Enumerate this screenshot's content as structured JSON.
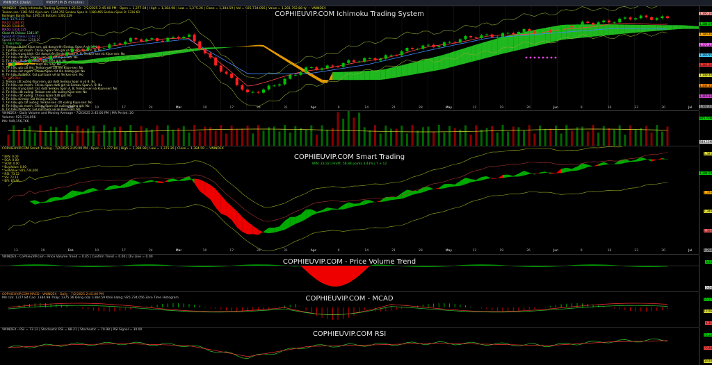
{
  "window": {
    "tabs": [
      "VNINDEX (Daily)",
      "VN30F1M (5 minutes)"
    ]
  },
  "panes": {
    "ichimoku": {
      "header": "VNINDEX - Daily Ichimoku Trading System 4.25.53 - 7/2/2025 2:45:00 PM - Open = 1,377.84 | High = 1,384.98 | Low = 1,375.26 | Close = 1,384.59 | Vol = 925,734,056 | Value = 1,281,762.88 tỷ — VNINDEX",
      "title": "COPHIEUVIP.COM Ichimoku Trading System",
      "legend": [
        "Tenkan-sen: 1361.565  Kijun-sen: 1344.355  Senkou Span A: 1380.465  Senkou Span B: 1316.60",
        "Bollinger Bands Top: 1395.16  Bottom: 1302.229",
        "MA5: 1375.122",
        "MA10: 1366.95",
        "MA20: 1348.40",
        "MA50: 1316.125",
        "Close At Chikou: 1341.97",
        "SpanA At Chikou: 1193.73",
        "SpanB At Chikou: 1258.20",
        "Tín hiệu Mua:",
        "1. Tenkan cắt lên Kijun-sen, giá đang trên Senkou Span A và B: No",
        "2. Tín hiệu cực mạnh: Chikou Span trên giá và Senkou Span A, B: No",
        "3. Tín hiệu trung bình: Giá đang trên Senkou Span A, B, Tenkan-sen và Kijun-sen: No",
        "4. Tín hiệu cắt lên: Tenkan-sen cắt lên Kijun-sen: No",
        "5. Tín hiệu cắt lên: Chikou Span trên giá: No",
        "6. Tín hiệu từ mây: Giá vượt lên mây: No",
        "7. Tín hiệu giá cắt lên: Tenkan-sen cắt lên Kijun-sen: No",
        "8. Tín hiệu sức mạnh: Chikou Span cắt lên đường giá: No",
        "9. Tín hiệu Pullback: Giá pull back về lại Tenkan-sen: No",
        "Tín hiệu Bán:",
        "1. Tenkan cắt xuống Kijun-sen, giá dưới Senkou Span A và B: No",
        "2. Tín hiệu cực mạnh: Chikou Span dưới giá và Senkou Span A, B: No",
        "3. Tín hiệu trung bình: Giá dưới Senkou Span A, B, Tenkan-sen và Kijun-sen: No",
        "4. Tín hiệu cắt xuống: Tenkan-sen cắt xuống Kijun-sen: No",
        "5. Tín hiệu cắt xuống: Chikou Span dưới giá: No",
        "6. Tín hiệu từ mây: Giá thủng mây: No",
        "7. Tín hiệu giá cắt xuống: Tenkan-sen cắt xuống Kijun-sen: No",
        "8. Tín hiệu sức mạnh: Chikou Span cắt xuống đường giá: No",
        "9. Tín hiệu Pullback: Giá pull back về lại Kijun-sen: No"
      ],
      "axis_ticks": [
        "1,395.16",
        "1,384.59",
        "1,380.46",
        "1,375.12",
        "1,366.95",
        "1,361.56",
        "1,348.40",
        "1,344.35",
        "1,316.12",
        "1,302.22"
      ]
    },
    "volume": {
      "header": "VNINDEX - Daily Volume and Moving Average - 7/2/2025 2:45:00 PM | MA Period: 20",
      "sub1": "Volume: 925,734,056",
      "sub2": "MA: 949,156,766",
      "axis_ticks": [
        "925.73M",
        "949.15M"
      ]
    },
    "smart": {
      "header": "COPHIEUVIP.COM Smart Trading - 7/2/2025 2:45:00 PM - Open = 1,377.84 | High = 1,384.98 | Low = 1,375.26 | Close = 1,384.59 — VNINDEX",
      "title": "COPHIEUVIP.COM Smart Trading",
      "subtitle": "WIN: 22/32 | Profit: 58.88 points 4.43% | T + 12",
      "legend": [
        "* BPS:  0.00",
        "* SCA:  0.00",
        "* SCW:  0.00",
        "* BuyValue:  0.00",
        "* SellValue: 925,734,056",
        "* RSI:  73.12",
        "* SS:  73.12",
        "* BFI:  83.88"
      ],
      "axis_ticks": [
        "1,395",
        "1,384.59",
        "1,370",
        "1,340",
        "1,300",
        "1,250"
      ]
    },
    "pvt": {
      "header": "VNINDEX - CoPhieuVIP.com - Price Volume Trend = 0.45 | Confirm Trend = 0.00 | Div Line = 0.00",
      "title": "COPHIEUVIP.COM - Price Volume Trend",
      "axis_ticks": [
        "0.45",
        "0.00"
      ]
    },
    "macd": {
      "header": "COPHIEUVIP.COM MACD - VNINDEX - Daily - 7/2/2025 2:45:00 PM",
      "sub": "Mở cửa: 1377.84  Cao: 1384.98  Thấp: 1375.26  Đóng cửa: 1384.59  Khối lượng: 925,734,056  Zero Time  Histogram",
      "title": "COPHIEUVIP.COM - MCAD",
      "axis_ticks": [
        "16.37",
        "12.06",
        "4.31"
      ]
    },
    "rsi": {
      "header": "VNINDEX - RSI = 73.12 | Stochastic RSI = 88.21 | Stochastic = 70.98 | RSI Signal = 30.00",
      "title": "COPHIEUVIP.COM RSI",
      "axis_ticks": [
        "73.12",
        "70.98",
        "30.00"
      ]
    }
  },
  "x_labels": [
    "13",
    "20",
    "Feb",
    "10",
    "17",
    "24",
    "Mar",
    "10",
    "17",
    "24",
    "31",
    "Apr",
    "9",
    "14",
    "21",
    "28",
    "May",
    "12",
    "19",
    "26",
    "Jun",
    "9",
    "16",
    "23",
    "30",
    "Jul"
  ],
  "chart_data": [
    {
      "type": "line",
      "title": "COPHIEUVIP.COM Ichimoku Trading System",
      "x": [
        "2025-01-13",
        "2025-02-03",
        "2025-03-03",
        "2025-03-31",
        "2025-04-09",
        "2025-04-21",
        "2025-05-05",
        "2025-05-19",
        "2025-06-02",
        "2025-06-16",
        "2025-06-30",
        "2025-07-02"
      ],
      "series": [
        {
          "name": "Close",
          "values": [
            1225,
            1270,
            1305,
            1320,
            1130,
            1215,
            1245,
            1290,
            1325,
            1340,
            1372,
            1384.59
          ]
        },
        {
          "name": "Tenkan-sen",
          "values": [
            1230,
            1265,
            1300,
            1318,
            1160,
            1210,
            1240,
            1285,
            1320,
            1335,
            1360,
            1361.57
          ]
        },
        {
          "name": "Kijun-sen",
          "values": [
            1235,
            1255,
            1290,
            1312,
            1200,
            1200,
            1230,
            1275,
            1315,
            1330,
            1345,
            1344.36
          ]
        }
      ],
      "ylim": [
        1100,
        1400
      ]
    },
    {
      "type": "bar",
      "title": "Volume and Moving Average",
      "categories": [
        "Jan",
        "Feb",
        "Mar",
        "Apr",
        "May",
        "Jun",
        "Jul"
      ],
      "values": [
        650,
        780,
        820,
        1150,
        760,
        880,
        925.73
      ],
      "ylabel": "Volume (M)"
    },
    {
      "type": "area",
      "title": "COPHIEUVIP.COM Smart Trading",
      "x": [
        "2025-01-13",
        "2025-02-03",
        "2025-03-03",
        "2025-03-31",
        "2025-04-09",
        "2025-04-21",
        "2025-05-05",
        "2025-05-19",
        "2025-06-02",
        "2025-06-16",
        "2025-06-30",
        "2025-07-02"
      ],
      "series": [
        {
          "name": "Close",
          "values": [
            1225,
            1270,
            1305,
            1320,
            1130,
            1215,
            1245,
            1290,
            1325,
            1340,
            1372,
            1384.59
          ]
        }
      ],
      "ylim": [
        1100,
        1400
      ]
    },
    {
      "type": "line",
      "title": "COPHIEUVIP.COM RSI",
      "x": [
        "2025-01-13",
        "2025-02-03",
        "2025-03-03",
        "2025-03-31",
        "2025-04-09",
        "2025-04-21",
        "2025-05-05",
        "2025-05-19",
        "2025-06-02",
        "2025-06-16",
        "2025-06-30",
        "2025-07-02"
      ],
      "series": [
        {
          "name": "RSI",
          "values": [
            48,
            58,
            62,
            55,
            15,
            52,
            57,
            63,
            60,
            55,
            68,
            73.12
          ]
        }
      ],
      "ylim": [
        0,
        100
      ]
    }
  ],
  "colors": {
    "up": "#00c000",
    "down": "#ff2020",
    "cloud_up": "#22cc22",
    "cloud_down": "#ffaa00",
    "accent": "#ffff00"
  }
}
